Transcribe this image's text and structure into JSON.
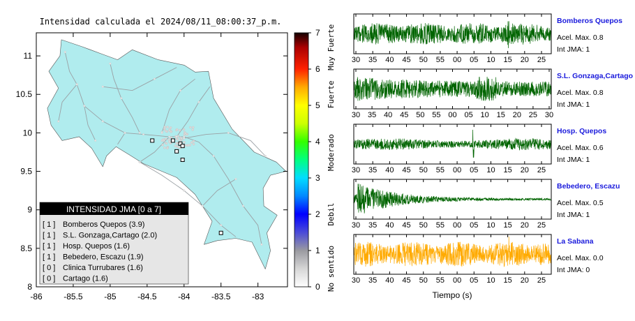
{
  "chart_data": [
    {
      "type": "map",
      "title": "Intensidad calculada el 2024/08/11_08:00:37_p.m.",
      "xlabel": "",
      "ylabel": "",
      "xlim": [
        -86,
        -82.6
      ],
      "ylim": [
        8,
        11.3
      ],
      "x_ticks": [
        -86,
        -85.5,
        -85,
        -84.5,
        -84,
        -83.5,
        -83
      ],
      "x_tick_labels": [
        "-86",
        "-85.5",
        "-85",
        "-84.5",
        "-84",
        "-83.5",
        "-83"
      ],
      "y_ticks": [
        8,
        8.5,
        9,
        9.5,
        10,
        10.5,
        11
      ],
      "y_tick_labels": [
        "8",
        "8.5",
        "9",
        "9.5",
        "10",
        "10.5",
        "11"
      ],
      "land_color": "#b0ecee",
      "station_markers": [
        {
          "lon": -84.43,
          "lat": 9.9
        },
        {
          "lon": -84.15,
          "lat": 9.9
        },
        {
          "lon": -84.05,
          "lat": 9.86
        },
        {
          "lon": -84.1,
          "lat": 9.76
        },
        {
          "lon": -84.02,
          "lat": 9.65
        },
        {
          "lon": -84.02,
          "lat": 9.83
        },
        {
          "lon": -83.5,
          "lat": 8.7
        }
      ],
      "legend": {
        "title": "INTENSIDAD JMA [0 a 7]",
        "entries": [
          {
            "level": "[ 1 ]",
            "name": "Bomberos Quepos (3.9)"
          },
          {
            "level": "[ 1 ]",
            "name": "S.L. Gonzaga,Cartago (2.0)"
          },
          {
            "level": "[ 1 ]",
            "name": "Hosp. Quepos (1.6)"
          },
          {
            "level": "[ 1 ]",
            "name": "Bebedero, Escazu (1.9)"
          },
          {
            "level": "[ 0 ]",
            "name": "Clinica Turrubares (1.6)"
          },
          {
            "level": "[ 0 ]",
            "name": "Cartago (1.6)"
          }
        ]
      },
      "colorbar": {
        "range": [
          0,
          7
        ],
        "tick_labels": [
          "0",
          "1",
          "2",
          "3",
          "4",
          "5",
          "6",
          "7"
        ],
        "category_labels": [
          {
            "label": "No sentido",
            "value": 0.5
          },
          {
            "label": "Debil",
            "value": 2
          },
          {
            "label": "Moderado",
            "value": 3.7
          },
          {
            "label": "Fuerte",
            "value": 5.3
          },
          {
            "label": "Muy Fuerte",
            "value": 6.6
          }
        ],
        "stops": [
          {
            "value": 0,
            "color": "#ffffff"
          },
          {
            "value": 0.5,
            "color": "#d6d6d6"
          },
          {
            "value": 1,
            "color": "#9a9aa0"
          },
          {
            "value": 1.5,
            "color": "#4b4bd8"
          },
          {
            "value": 2,
            "color": "#0000ff"
          },
          {
            "value": 2.5,
            "color": "#0088ff"
          },
          {
            "value": 3,
            "color": "#00ddff"
          },
          {
            "value": 3.5,
            "color": "#00ff80"
          },
          {
            "value": 4,
            "color": "#33ff00"
          },
          {
            "value": 4.5,
            "color": "#ccff00"
          },
          {
            "value": 5,
            "color": "#ffff00"
          },
          {
            "value": 5.5,
            "color": "#ffaa00"
          },
          {
            "value": 6,
            "color": "#ff2200"
          },
          {
            "value": 6.6,
            "color": "#aa0000"
          },
          {
            "value": 7,
            "color": "#140000"
          }
        ]
      }
    },
    {
      "type": "line",
      "title": "",
      "xlabel": "Tiempo (s)",
      "ylabel": "",
      "panels": [
        {
          "name": "Bomberos Quepos",
          "acel_label": "Acel. Max. 0.8",
          "int_label": "Int JMA: 1",
          "color": "#006400",
          "amplitude": 0.65,
          "envelope": "sustained",
          "tick_labels": [
            "30",
            "35",
            "40",
            "45",
            "50",
            "55",
            "00",
            "05",
            "10",
            "15",
            "20",
            "25"
          ]
        },
        {
          "name": "S.L. Gonzaga,Cartago",
          "acel_label": "Acel. Max. 0.8",
          "int_label": "Int JMA: 1",
          "color": "#006400",
          "amplitude": 0.7,
          "envelope": "early-strong",
          "tick_labels": [
            "30",
            "35",
            "40",
            "45",
            "50",
            "55",
            "00",
            "05",
            "10",
            "15",
            "20",
            "25",
            "30"
          ]
        },
        {
          "name": "Hosp. Quepos",
          "acel_label": "Acel. Max. 0.6",
          "int_label": "Int JMA: 1",
          "color": "#006400",
          "amplitude": 0.45,
          "envelope": "sustained-spike",
          "tick_labels": [
            "30",
            "35",
            "40",
            "45",
            "50",
            "55",
            "00",
            "05",
            "10",
            "15",
            "20",
            "25"
          ]
        },
        {
          "name": "Bebedero, Escazu",
          "acel_label": "Acel. Max. 0.5",
          "int_label": "Int JMA: 1",
          "color": "#006400",
          "amplitude": 0.95,
          "envelope": "decay",
          "tick_labels": [
            "30",
            "35",
            "40",
            "45",
            "50",
            "55",
            "00",
            "05",
            "10",
            "15",
            "20",
            "25"
          ]
        },
        {
          "name": "La Sabana",
          "acel_label": "Acel. Max. 0.0",
          "int_label": "Int JMA: 0",
          "color": "#ffaa00",
          "amplitude": 0.75,
          "envelope": "sustained",
          "tick_labels": [
            "30",
            "35",
            "40",
            "45",
            "50",
            "55",
            "00",
            "05",
            "10",
            "15",
            "20",
            "25"
          ]
        }
      ]
    }
  ]
}
